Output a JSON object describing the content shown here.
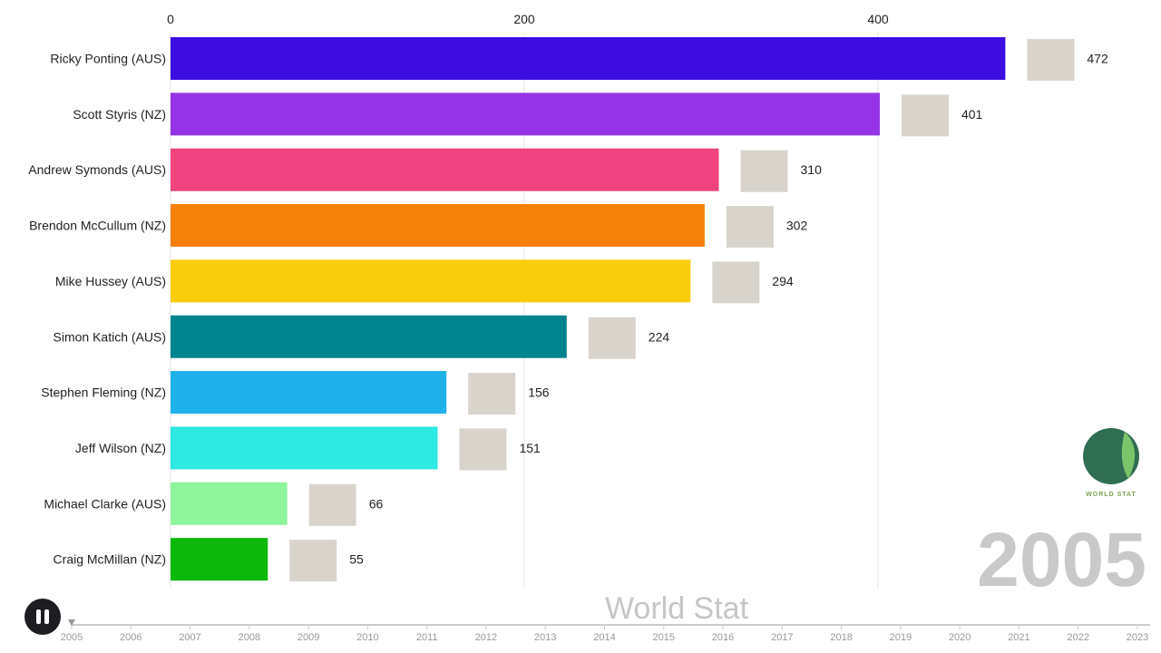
{
  "chart_data": {
    "type": "bar",
    "orientation": "horizontal",
    "title": "",
    "xlim": [
      0,
      472
    ],
    "x_ticks": [
      0,
      200,
      400
    ],
    "grid": true,
    "year": "2005",
    "categories": [
      "Ricky Ponting (AUS)",
      "Scott Styris (NZ)",
      "Andrew Symonds (AUS)",
      "Brendon McCullum (NZ)",
      "Mike Hussey (AUS)",
      "Simon Katich (AUS)",
      "Stephen Fleming (NZ)",
      "Jeff Wilson (NZ)",
      "Michael Clarke (AUS)",
      "Craig McMillan (NZ)"
    ],
    "values": [
      472,
      401,
      310,
      302,
      294,
      224,
      156,
      151,
      66,
      55
    ],
    "colors": [
      "#3d0ce0",
      "#9434e6",
      "#ef4480",
      "#f5800a",
      "#f7cc0a",
      "#00848e",
      "#1fb2ea",
      "#2ee8e2",
      "#8ef59c",
      "#0bb80b"
    ]
  },
  "watermark": "World Stat",
  "logo_text": "WORLD STAT",
  "timeline": {
    "years": [
      "2005",
      "2006",
      "2007",
      "2008",
      "2009",
      "2010",
      "2011",
      "2012",
      "2013",
      "2014",
      "2015",
      "2016",
      "2017",
      "2018",
      "2019",
      "2020",
      "2021",
      "2022",
      "2023"
    ],
    "current": "2005"
  },
  "controls": {
    "pause_icon": "pause-icon"
  }
}
